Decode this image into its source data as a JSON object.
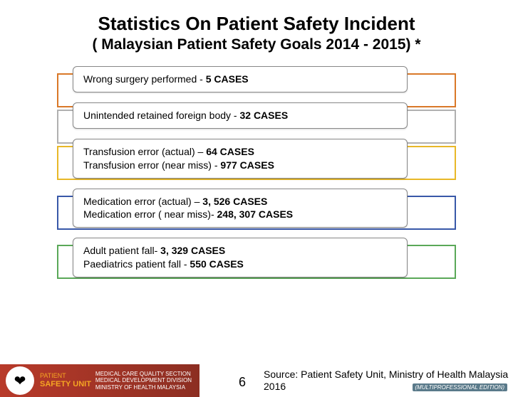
{
  "title": "Statistics On Patient Safety Incident",
  "subtitle": "( Malaysian Patient Safety Goals 2014 - 2015) *",
  "rows": [
    {
      "border_color": "#d97828",
      "lines": [
        "Wrong surgery performed  - <b>5 CASES</b>"
      ]
    },
    {
      "border_color": "#b0b0b0",
      "lines": [
        "Unintended retained foreign body  - <b>32 CASES</b>"
      ]
    },
    {
      "border_color": "#e8b828",
      "lines": [
        "Transfusion error (actual) – <b>64 CASES</b>",
        "Transfusion error (near miss) - <b>977 CASES</b>"
      ]
    },
    {
      "border_color": "#3858a8",
      "lines": [
        "Medication error (actual) –   <b>3, 526 CASES</b>",
        "Medication error ( near miss)- <b>248, 307 CASES</b>"
      ]
    },
    {
      "border_color": "#5aa858",
      "lines": [
        "Adult patient fall- <b>3, 329 CASES</b>",
        "Paediatrics patient fall - <b>550 CASES</b>"
      ]
    }
  ],
  "footer": {
    "logo_lines": [
      "MEDICAL CARE QUALITY SECTION",
      "MEDICAL DEVELOPMENT DIVISION",
      "MINISTRY OF HEALTH MALAYSIA"
    ],
    "logo_unit_top": "PATIENT",
    "safety_label": "SAFETY UNIT",
    "page_number": "6",
    "source": "Source: Patient Safety Unit, Ministry of Health Malaysia 2016",
    "edition": "(MULTIPROFESSIONAL EDITION)"
  }
}
